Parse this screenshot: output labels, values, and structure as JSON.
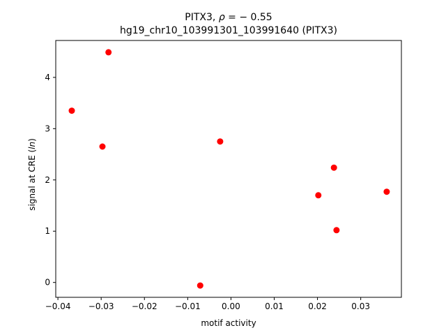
{
  "chart_data": {
    "type": "scatter",
    "title_line1_prefix": "PITX3, ",
    "title_line1_symbol": "ρ",
    "title_line1_suffix": " = − 0.55",
    "title_line2": "hg19_chr10_103991301_103991640 (PITX3)",
    "xlabel": "motif activity",
    "ylabel_prefix": "signal at CRE (",
    "ylabel_italic": "ln",
    "ylabel_suffix": ")",
    "xlim": [
      -0.0405,
      0.0394
    ],
    "ylim": [
      -0.29,
      4.72
    ],
    "xticks": [
      -0.04,
      -0.03,
      -0.02,
      -0.01,
      0.0,
      0.01,
      0.02,
      0.03
    ],
    "xtick_labels": [
      "−0.04",
      "−0.03",
      "−0.02",
      "−0.01",
      "0.00",
      "0.01",
      "0.02",
      "0.03"
    ],
    "yticks": [
      0,
      1,
      2,
      3,
      4
    ],
    "ytick_labels": [
      "0",
      "1",
      "2",
      "3",
      "4"
    ],
    "grid": false,
    "marker_color": "#ff0000",
    "series": [
      {
        "points": [
          {
            "x": -0.0368,
            "y": 3.35
          },
          {
            "x": -0.0283,
            "y": 4.49
          },
          {
            "x": -0.0297,
            "y": 2.65
          },
          {
            "x": -0.0071,
            "y": -0.06
          },
          {
            "x": -0.0025,
            "y": 2.75
          },
          {
            "x": 0.0202,
            "y": 1.7
          },
          {
            "x": 0.0238,
            "y": 2.24
          },
          {
            "x": 0.0244,
            "y": 1.02
          },
          {
            "x": 0.036,
            "y": 1.77
          }
        ]
      }
    ]
  }
}
